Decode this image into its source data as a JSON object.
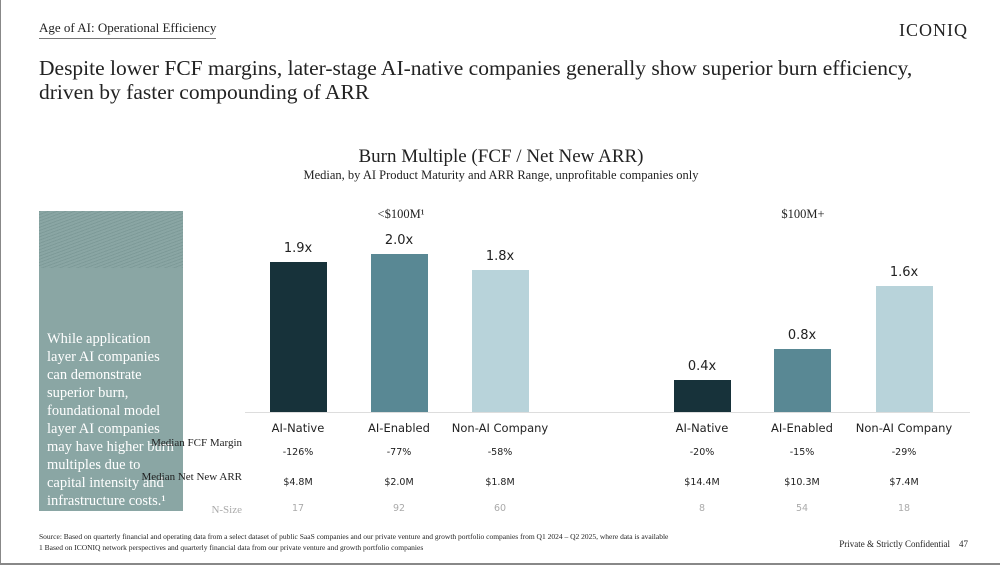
{
  "header": {
    "section": "Age of AI: Operational Efficiency",
    "logo": "ICONIQ"
  },
  "headline": "Despite lower FCF margins, later-stage AI-native companies generally show superior burn efficiency, driven by faster compounding of ARR",
  "callout": "While application layer AI companies can demonstrate superior burn, foundational model layer AI companies may have higher burn multiples due to capital intensity and infrastructure costs.¹",
  "colors": {
    "ai_native": "#17323a",
    "ai_enabled": "#598894",
    "non_ai": "#b8d3da"
  },
  "chart_data": {
    "type": "bar",
    "title": "Burn Multiple (FCF / Net New ARR)",
    "subtitle": "Median, by AI Product Maturity and ARR Range, unprofitable companies only",
    "ylim": [
      0,
      2.2
    ],
    "groups": [
      {
        "name": "<$100M¹",
        "categories": [
          "AI-Native",
          "AI-Enabled",
          "Non-AI Company"
        ],
        "values": [
          1.9,
          2.0,
          1.8
        ],
        "labels": [
          "1.9x",
          "2.0x",
          "1.8x"
        ]
      },
      {
        "name": "$100M+",
        "categories": [
          "AI-Native",
          "AI-Enabled",
          "Non-AI Company"
        ],
        "values": [
          0.4,
          0.8,
          1.6
        ],
        "labels": [
          "0.4x",
          "0.8x",
          "1.6x"
        ]
      }
    ]
  },
  "table": {
    "rows": [
      {
        "label": "Median FCF Margin",
        "values": [
          "-126%",
          "-77%",
          "-58%",
          "-20%",
          "-15%",
          "-29%"
        ]
      },
      {
        "label": "Median Net New ARR",
        "values": [
          "$4.8M",
          "$2.0M",
          "$1.8M",
          "$14.4M",
          "$10.3M",
          "$7.4M"
        ]
      },
      {
        "label": "N-Size",
        "values": [
          "17",
          "92",
          "60",
          "8",
          "54",
          "18"
        ]
      }
    ]
  },
  "footer": {
    "source": "Source: Based on quarterly financial and operating data from a select dataset of public SaaS companies and our private venture and growth portfolio companies from Q1 2024 – Q2 2025, where data is available",
    "note": "1 Based on ICONIQ network perspectives and quarterly financial data from our private venture and growth portfolio companies",
    "confidential": "Private & Strictly Confidential",
    "page": "47"
  }
}
